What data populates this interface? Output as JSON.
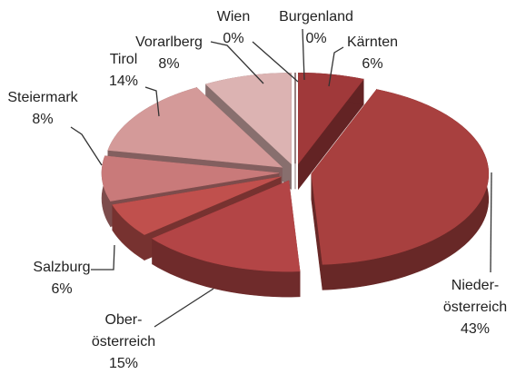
{
  "chart_data": {
    "type": "pie3d",
    "categories": [
      "Burgenland",
      "Kärnten",
      "Nieder-\nösterreich",
      "Ober-\nösterreich",
      "Salzburg",
      "Steiermark",
      "Tirol",
      "Vorarlberg",
      "Wien"
    ],
    "values": [
      0,
      6,
      43,
      15,
      6,
      8,
      14,
      8,
      0
    ],
    "value_labels": [
      "0%",
      "6%",
      "43%",
      "15%",
      "6%",
      "8%",
      "14%",
      "8%",
      "0%"
    ],
    "colors": [
      "#9a3435",
      "#a0393a",
      "#a8403f",
      "#b34546",
      "#c0504d",
      "#c97a7a",
      "#d49a99",
      "#dcb3b2",
      "#e6c8c8"
    ]
  }
}
